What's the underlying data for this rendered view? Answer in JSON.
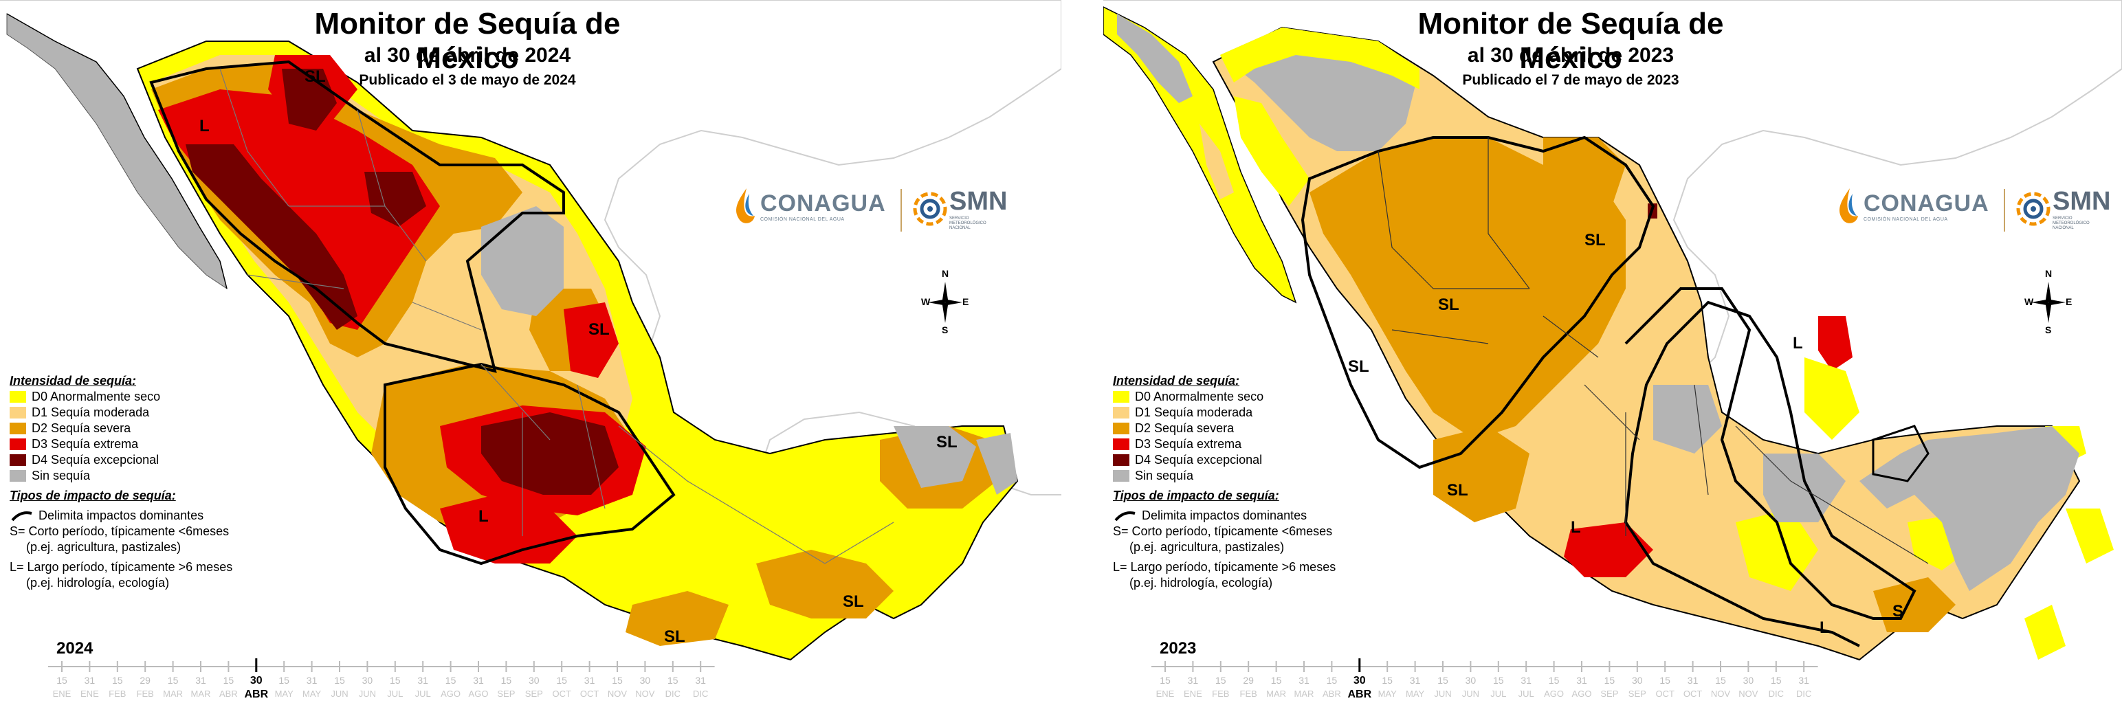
{
  "panels": [
    {
      "id": "2024",
      "title": "Monitor de Sequía de México",
      "date": "al 30 de abril de 2024",
      "published": "Publicado el 3 de mayo de 2024",
      "year": "2024",
      "labels": [
        "SL",
        "L",
        "SL",
        "L",
        "SL",
        "SL",
        "SL"
      ]
    },
    {
      "id": "2023",
      "title": "Monitor de Sequía de México",
      "date": "al 30 de abril de 2023",
      "published": "Publicado el 7 de mayo de 2023",
      "year": "2023",
      "labels": [
        "SL",
        "SL",
        "L",
        "SL",
        "SL",
        "L",
        "L",
        "S"
      ]
    }
  ],
  "logos": {
    "conagua": "CONAGUA",
    "conagua_sub": "COMISIÓN NACIONAL DEL AGUA",
    "smn": "SMN",
    "smn_sub1": "SERVICIO",
    "smn_sub2": "METEOROLÓGICO",
    "smn_sub3": "NACIONAL"
  },
  "compass": {
    "n": "N",
    "s": "S",
    "e": "E",
    "w": "W"
  },
  "legend": {
    "intensity_title": "Intensidad de sequía:",
    "items": [
      {
        "label": "D0 Anormalmente seco",
        "color": "#ffff00"
      },
      {
        "label": "D1 Sequía moderada",
        "color": "#fcd37f"
      },
      {
        "label": "D2 Sequía severa",
        "color": "#e59b00"
      },
      {
        "label": "D3 Sequía extrema",
        "color": "#e60000"
      },
      {
        "label": "D4 Sequía excepcional",
        "color": "#730000"
      },
      {
        "label": "Sin sequía",
        "color": "#b4b4b4"
      }
    ],
    "impact_title": "Tipos de impacto de sequía:",
    "impact_line": "Delimita impactos dominantes",
    "short_term": "S= Corto período, típicamente <6meses",
    "short_term_ex": "(p.ej. agricultura, pastizales)",
    "long_term": "L= Largo período, típicamente >6 meses",
    "long_term_ex": "(p.ej. hidrología, ecología)"
  },
  "timeline": {
    "days": [
      "15",
      "31",
      "15",
      "29",
      "15",
      "31",
      "15",
      "30",
      "15",
      "31",
      "15",
      "30",
      "15",
      "31",
      "15",
      "31",
      "15",
      "30",
      "15",
      "31",
      "15",
      "30",
      "15",
      "31"
    ],
    "months": [
      "ENE",
      "ENE",
      "FEB",
      "FEB",
      "MAR",
      "MAR",
      "ABR",
      "ABR",
      "MAY",
      "MAY",
      "JUN",
      "JUN",
      "JUL",
      "JUL",
      "AGO",
      "AGO",
      "SEP",
      "SEP",
      "OCT",
      "OCT",
      "NOV",
      "NOV",
      "DIC",
      "DIC"
    ],
    "current_index": 7
  },
  "colors": {
    "ocean": "#ffffff",
    "usa_land": "#ffffff",
    "border": "#000000"
  }
}
